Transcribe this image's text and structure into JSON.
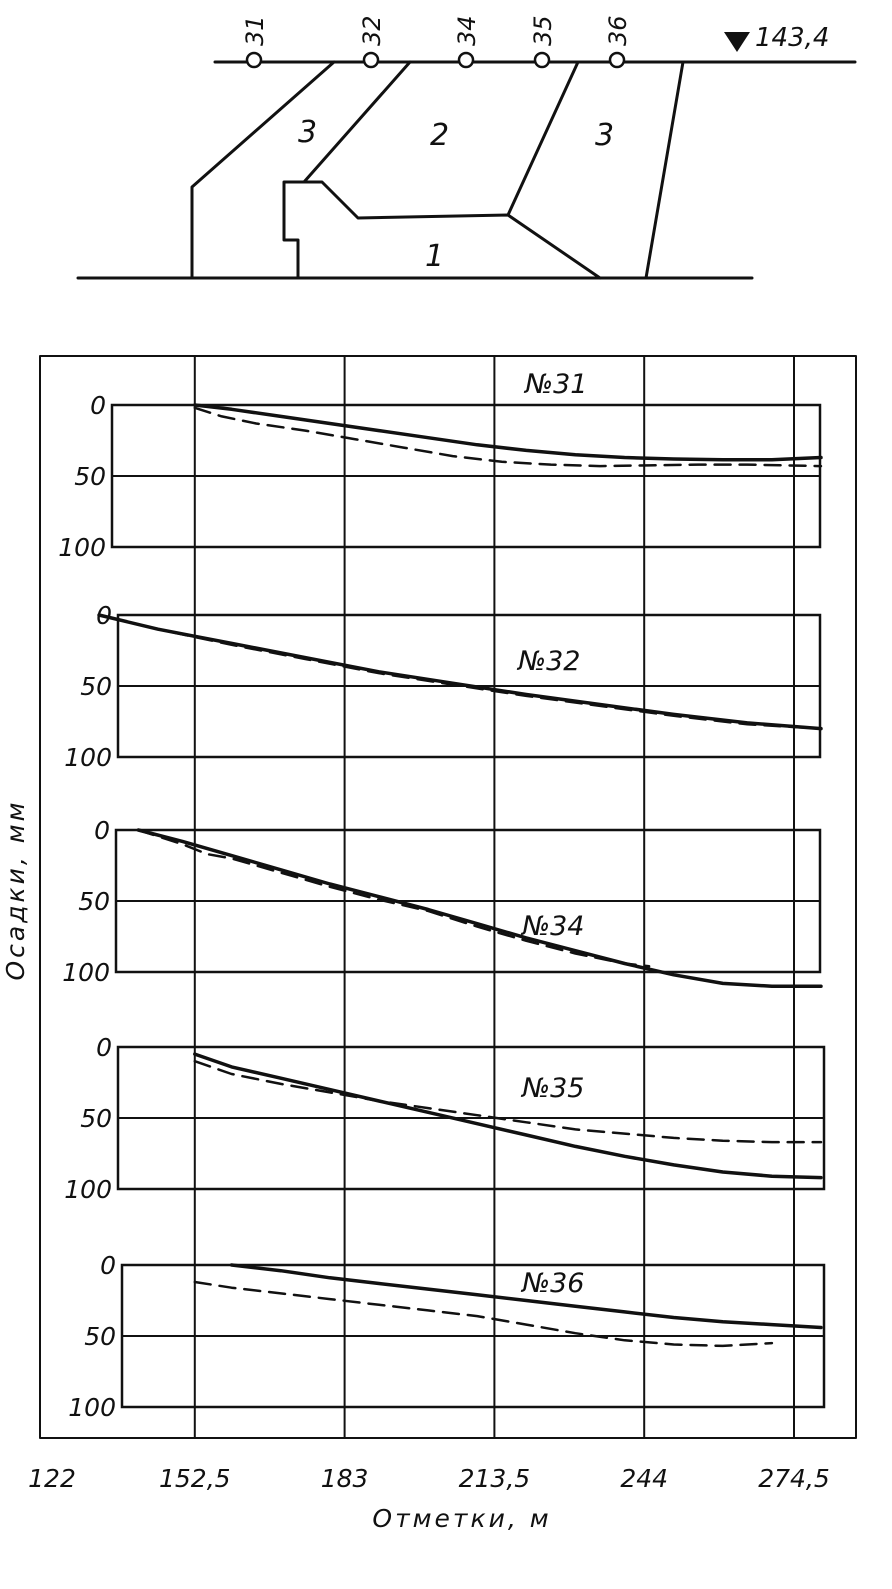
{
  "cross_section": {
    "elevation_label": "143,4",
    "benchmarks": [
      "31",
      "32",
      "34",
      "35",
      "36"
    ],
    "zones": [
      "3",
      "2",
      "3",
      "1"
    ]
  },
  "chart_data": {
    "type": "line",
    "xlabel": "Отметки, м",
    "ylabel": "Осадки, мм",
    "x_ticks": [
      "122",
      "152,5",
      "183",
      "213,5",
      "244",
      "274,5"
    ],
    "x_tick_values": [
      122,
      152.5,
      183,
      213.5,
      244,
      274.5
    ],
    "xlim": [
      122,
      274.5
    ],
    "ylim": [
      0,
      100
    ],
    "y_ticks": [
      "0",
      "50",
      "100"
    ],
    "y_inverted": true,
    "grid": true,
    "line_styles": [
      "solid",
      "dashed"
    ],
    "panels": [
      {
        "label": "№31",
        "series": [
          {
            "style": "solid",
            "x": [
              152.5,
              160,
              170,
              180,
              190,
              200,
              210,
              220,
              230,
              240,
              250,
              260,
              270,
              280
            ],
            "y": [
              0,
              3,
              8,
              13,
              18,
              23,
              28,
              32,
              35,
              37,
              38,
              38.5,
              38.5,
              37
            ]
          },
          {
            "style": "dashed",
            "x": [
              152.5,
              158,
              165,
              175,
              185,
              195,
              205,
              215,
              225,
              235,
              245,
              255,
              265,
              280
            ],
            "y": [
              2,
              8,
              13,
              18,
              24,
              30,
              36,
              40,
              42,
              43,
              42.5,
              42,
              42,
              43
            ]
          }
        ]
      },
      {
        "label": "№32",
        "series": [
          {
            "style": "solid",
            "x": [
              133,
              145,
              160,
              175,
              190,
              205,
              220,
              235,
              250,
              265,
              280
            ],
            "y": [
              0,
              10,
              20,
              30,
              40,
              48,
              56,
              63,
              70,
              76,
              80
            ]
          },
          {
            "style": "dashed",
            "x": [
              133,
              145,
              160,
              175,
              190,
              205,
              220,
              235,
              250,
              265,
              280
            ],
            "y": [
              0,
              10,
              21,
              31,
              41,
              49,
              57,
              64,
              71,
              77,
              80
            ]
          }
        ]
      },
      {
        "label": "№34",
        "series": [
          {
            "style": "solid",
            "x": [
              141,
              150,
              160,
              170,
              180,
              190,
              200,
              210,
              220,
              230,
              240,
              250,
              260,
              270,
              280
            ],
            "y": [
              0,
              8,
              18,
              28,
              38,
              47,
              56,
              66,
              76,
              85,
              94,
              102,
              108,
              110,
              110
            ]
          },
          {
            "style": "dashed",
            "x": [
              141,
              150,
              155,
              160,
              170,
              180,
              190,
              200,
              210,
              220,
              230,
              240,
              245
            ],
            "y": [
              0,
              10,
              17,
              20,
              30,
              40,
              49,
              57,
              68,
              78,
              87,
              94,
              96
            ]
          }
        ]
      },
      {
        "label": "№35",
        "series": [
          {
            "style": "solid",
            "x": [
              152.5,
              160,
              170,
              180,
              190,
              200,
              210,
              220,
              230,
              240,
              250,
              260,
              270,
              280
            ],
            "y": [
              5,
              14,
              22,
              30,
              38,
              46,
              54,
              62,
              70,
              77,
              83,
              88,
              91,
              92
            ]
          },
          {
            "style": "dashed",
            "x": [
              152.5,
              160,
              170,
              180,
              190,
              200,
              210,
              220,
              230,
              240,
              250,
              260,
              270,
              280
            ],
            "y": [
              10,
              19,
              26,
              32,
              38,
              43,
              48,
              53,
              58,
              61,
              64,
              66,
              67,
              67
            ]
          }
        ]
      },
      {
        "label": "№36",
        "series": [
          {
            "style": "solid",
            "x": [
              160,
              170,
              180,
              190,
              200,
              210,
              220,
              230,
              240,
              250,
              260,
              270,
              280
            ],
            "y": [
              0,
              4,
              9,
              13,
              17,
              21,
              25,
              29,
              33,
              37,
              40,
              42,
              44
            ]
          },
          {
            "style": "dashed",
            "x": [
              152.5,
              160,
              170,
              180,
              190,
              200,
              210,
              220,
              230,
              240,
              250,
              260,
              270
            ],
            "y": [
              12,
              16,
              20,
              24,
              28,
              32,
              36,
              42,
              48,
              53,
              56,
              57,
              55
            ]
          }
        ]
      }
    ]
  }
}
